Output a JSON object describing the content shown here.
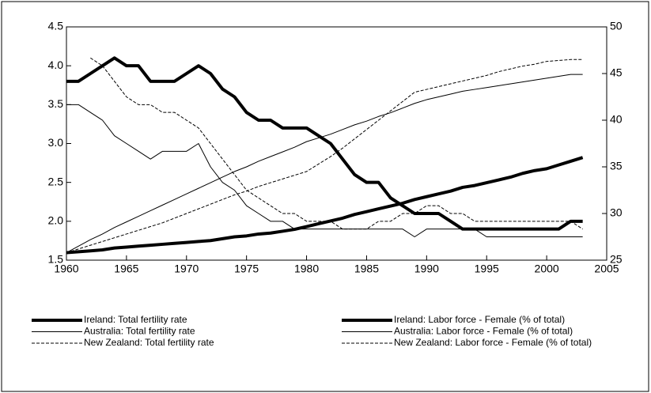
{
  "chart_data": {
    "type": "line",
    "x": [
      1960,
      1961,
      1962,
      1963,
      1964,
      1965,
      1966,
      1967,
      1968,
      1969,
      1970,
      1971,
      1972,
      1973,
      1974,
      1975,
      1976,
      1977,
      1978,
      1979,
      1980,
      1981,
      1982,
      1983,
      1984,
      1985,
      1986,
      1987,
      1988,
      1989,
      1990,
      1991,
      1992,
      1993,
      1994,
      1995,
      1996,
      1997,
      1998,
      1999,
      2000,
      2001,
      2002,
      2003
    ],
    "xlim": [
      1960,
      2005
    ],
    "xticks": [
      1960,
      1965,
      1970,
      1975,
      1980,
      1985,
      1990,
      1995,
      2000,
      2005
    ],
    "ylim": [
      1.5,
      4.5
    ],
    "yticks": [
      1.5,
      {
        "value": 2,
        "label": "2.0"
      },
      2.5,
      {
        "value": 3,
        "label": "3.0"
      },
      3.5,
      {
        "value": 4,
        "label": "4.0"
      },
      4.5
    ],
    "y2lim": [
      25,
      50
    ],
    "y2ticks": [
      25,
      30,
      35,
      40,
      45,
      50
    ],
    "series": [
      {
        "name": "Ireland: Total fertility rate",
        "color": "#000000",
        "width": 4,
        "dash": "none",
        "values": [
          3.8,
          3.8,
          3.9,
          4.0,
          4.1,
          4.0,
          4.0,
          3.8,
          3.8,
          3.8,
          3.9,
          4.0,
          3.9,
          3.7,
          3.6,
          3.4,
          3.3,
          3.3,
          3.2,
          3.2,
          3.2,
          3.1,
          3.0,
          2.8,
          2.6,
          2.5,
          2.5,
          2.3,
          2.2,
          2.1,
          2.1,
          2.1,
          2.0,
          1.9,
          1.9,
          1.9,
          1.9,
          1.9,
          1.9,
          1.9,
          1.9,
          1.9,
          2.0,
          2.0
        ]
      },
      {
        "name": "Ireland: Labor force - Female (% of total)",
        "color": "#000000",
        "width": 4,
        "dash": "none",
        "axis": "y2",
        "values": [
          25.8,
          25.9,
          26.0,
          26.1,
          26.3,
          26.4,
          26.5,
          26.6,
          26.7,
          26.8,
          26.9,
          27.0,
          27.1,
          27.3,
          27.5,
          27.6,
          27.8,
          27.9,
          28.1,
          28.3,
          28.6,
          28.9,
          29.2,
          29.5,
          29.9,
          30.2,
          30.5,
          30.8,
          31.1,
          31.5,
          31.8,
          32.1,
          32.4,
          32.8,
          33.0,
          33.3,
          33.6,
          33.9,
          34.3,
          34.6,
          34.8,
          35.2,
          35.6,
          36.0
        ]
      },
      {
        "name": "Australia: Total fertility rate",
        "color": "#000000",
        "width": 1,
        "dash": "none",
        "values": [
          3.5,
          3.5,
          3.4,
          3.3,
          3.1,
          3.0,
          2.9,
          2.8,
          2.9,
          2.9,
          2.9,
          3.0,
          2.7,
          2.5,
          2.4,
          2.2,
          2.1,
          2.0,
          2.0,
          1.9,
          1.9,
          1.9,
          1.9,
          1.9,
          1.9,
          1.9,
          1.9,
          1.9,
          1.9,
          1.8,
          1.9,
          1.9,
          1.9,
          1.9,
          1.9,
          1.8,
          1.8,
          1.8,
          1.8,
          1.8,
          1.8,
          1.8,
          1.8,
          1.8
        ]
      },
      {
        "name": "Australia: Labor force - Female (% of total)",
        "color": "#000000",
        "width": 1,
        "dash": "none",
        "axis": "y2",
        "values": [
          25.8,
          26.5,
          27.2,
          27.8,
          28.5,
          29.1,
          29.7,
          30.3,
          30.9,
          31.5,
          32.1,
          32.7,
          33.3,
          33.9,
          34.5,
          35.0,
          35.6,
          36.1,
          36.6,
          37.1,
          37.7,
          38.1,
          38.5,
          39.0,
          39.5,
          39.9,
          40.4,
          40.8,
          41.3,
          41.8,
          42.2,
          42.5,
          42.8,
          43.1,
          43.3,
          43.5,
          43.7,
          43.9,
          44.1,
          44.3,
          44.5,
          44.7,
          44.9,
          44.9
        ]
      },
      {
        "name": "New Zealand: Total fertility rate",
        "color": "#000000",
        "width": 1,
        "dash": "4,2",
        "values": [
          null,
          null,
          4.1,
          4.0,
          3.8,
          3.6,
          3.5,
          3.5,
          3.4,
          3.4,
          3.3,
          3.2,
          3.0,
          2.8,
          2.6,
          2.4,
          2.3,
          2.2,
          2.1,
          2.1,
          2.0,
          2.0,
          2.0,
          1.9,
          1.9,
          1.9,
          2.0,
          2.0,
          2.1,
          2.1,
          2.2,
          2.2,
          2.1,
          2.1,
          2.0,
          2.0,
          2.0,
          2.0,
          2.0,
          2.0,
          2.0,
          2.0,
          2.0,
          1.9
        ]
      },
      {
        "name": "New Zealand: Labor force - Female (% of total)",
        "color": "#000000",
        "width": 1,
        "dash": "4,2",
        "axis": "y2",
        "values": [
          25.8,
          26.2,
          26.6,
          27.0,
          27.4,
          27.8,
          28.2,
          28.6,
          29.0,
          29.5,
          30.0,
          30.5,
          31.0,
          31.5,
          32.0,
          32.4,
          32.9,
          33.3,
          33.7,
          34.1,
          34.5,
          35.3,
          36.1,
          37.0,
          38.0,
          39.0,
          40.0,
          41.0,
          42.0,
          43.0,
          43.3,
          43.6,
          43.9,
          44.2,
          44.5,
          44.8,
          45.2,
          45.5,
          45.8,
          46.0,
          46.3,
          46.4,
          46.5,
          46.5
        ]
      }
    ]
  }
}
